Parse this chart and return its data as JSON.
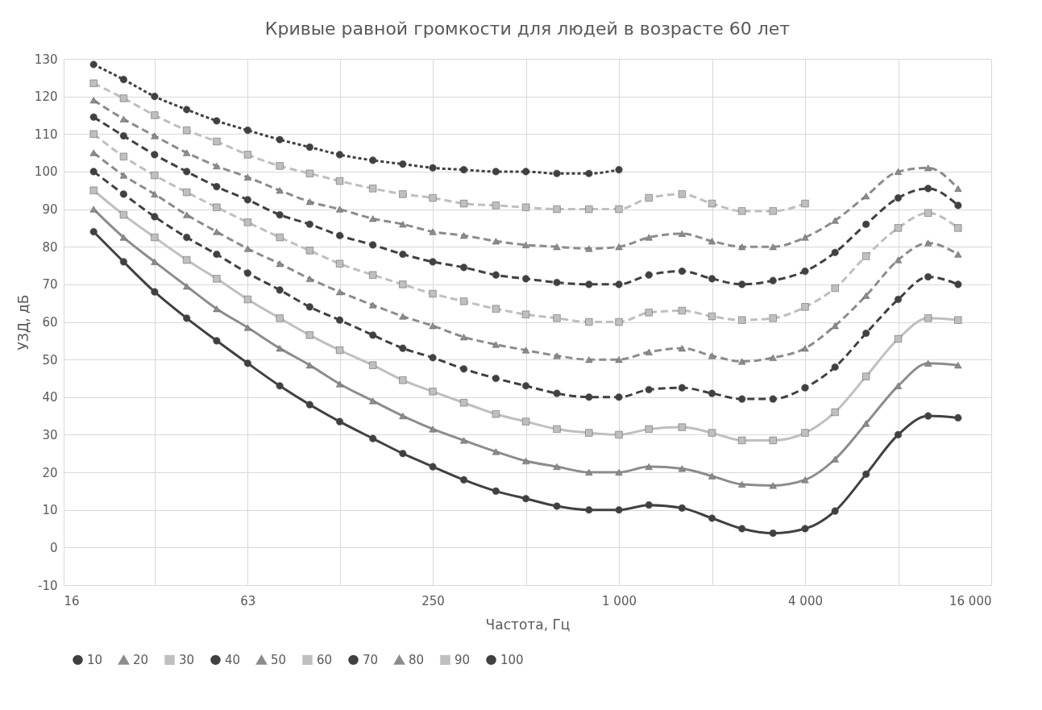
{
  "chart_data": {
    "type": "line",
    "title": "Кривые равной громкости для людей в возрасте 60 лет",
    "xlabel": "Частота, Гц",
    "ylabel": "УЗД, дБ",
    "x": [
      20,
      25,
      31.5,
      40,
      50,
      63,
      80,
      100,
      125,
      160,
      200,
      250,
      315,
      400,
      500,
      630,
      800,
      1000,
      1250,
      1600,
      2000,
      2500,
      3150,
      4000,
      5000,
      6300,
      8000,
      10000,
      12500
    ],
    "log": "x",
    "xlim": [
      16,
      16000
    ],
    "xticks": [
      16,
      {
        "value": 31.5,
        "label": null
      },
      {
        "value": 63,
        "label": "63"
      },
      {
        "value": 125,
        "label": null
      },
      250,
      {
        "value": 500,
        "label": null
      },
      {
        "value": 1000,
        "label": "1 000"
      },
      {
        "value": 2000,
        "label": null
      },
      {
        "value": 4000,
        "label": "4 000"
      },
      {
        "value": 8000,
        "label": null
      },
      {
        "value": 16000,
        "label": "16 000"
      }
    ],
    "ylim": [
      -10,
      130
    ],
    "yticks": [
      -10,
      0,
      10,
      20,
      30,
      40,
      50,
      60,
      70,
      80,
      90,
      100,
      110,
      120,
      130
    ],
    "grid": true,
    "legend": "bottom",
    "series": [
      {
        "name": "10",
        "color": "#404040",
        "marker": "circle",
        "line_style": "solid",
        "values": [
          84,
          76,
          68,
          61,
          55,
          49,
          43,
          38,
          33.5,
          29,
          25,
          21.5,
          18,
          15,
          13,
          11,
          10,
          10,
          11.3,
          10.5,
          7.8,
          5,
          3.8,
          5,
          9.7,
          19.5,
          30,
          35,
          34.5
        ]
      },
      {
        "name": "20",
        "color": "#8c8c8c",
        "marker": "triangle",
        "line_style": "solid",
        "values": [
          90,
          82.5,
          76,
          69.5,
          63.5,
          58.5,
          53,
          48.5,
          43.5,
          39,
          35,
          31.5,
          28.5,
          25.5,
          23,
          21.5,
          20,
          20,
          21.5,
          21,
          19,
          16.8,
          16.5,
          18,
          23.5,
          33,
          43,
          49,
          48.5
        ]
      },
      {
        "name": "30",
        "color": "#bfbfbf",
        "marker": "square",
        "line_style": "solid",
        "values": [
          95,
          88.5,
          82.5,
          76.5,
          71.5,
          66,
          61,
          56.5,
          52.5,
          48.5,
          44.5,
          41.5,
          38.5,
          35.5,
          33.5,
          31.5,
          30.5,
          30,
          31.5,
          32,
          30.5,
          28.5,
          28.5,
          30.5,
          36,
          45.5,
          55.5,
          61,
          60.5
        ]
      },
      {
        "name": "40",
        "color": "#404040",
        "marker": "circle",
        "line_style": "dashed",
        "values": [
          100,
          94,
          88,
          82.5,
          78,
          73,
          68.5,
          64,
          60.5,
          56.5,
          53,
          50.5,
          47.5,
          45,
          43,
          41,
          40,
          40,
          42,
          42.5,
          41,
          39.5,
          39.5,
          42.5,
          48,
          57,
          66,
          72,
          70
        ]
      },
      {
        "name": "50",
        "color": "#8c8c8c",
        "marker": "triangle",
        "line_style": "dashed",
        "values": [
          105,
          99,
          94,
          88.5,
          84,
          79.5,
          75.5,
          71.5,
          68,
          64.5,
          61.5,
          59,
          56,
          54,
          52.5,
          51,
          50,
          50,
          52,
          53,
          51,
          49.5,
          50.5,
          53,
          59,
          67,
          76.5,
          81,
          78
        ]
      },
      {
        "name": "60",
        "color": "#bfbfbf",
        "marker": "square",
        "line_style": "dashed",
        "values": [
          110,
          104,
          99,
          94.5,
          90.5,
          86.5,
          82.5,
          79,
          75.5,
          72.5,
          70,
          67.5,
          65.5,
          63.5,
          62,
          61,
          60,
          60,
          62.5,
          63,
          61.5,
          60.5,
          61,
          64,
          69,
          77.5,
          85,
          89,
          85
        ]
      },
      {
        "name": "70",
        "color": "#404040",
        "marker": "circle",
        "line_style": "dashed",
        "values": [
          114.5,
          109.5,
          104.5,
          100,
          96,
          92.5,
          88.5,
          86,
          83,
          80.5,
          78,
          76,
          74.5,
          72.5,
          71.5,
          70.5,
          70,
          70,
          72.5,
          73.5,
          71.5,
          70,
          71,
          73.5,
          78.5,
          86,
          93,
          95.5,
          91
        ]
      },
      {
        "name": "80",
        "color": "#8c8c8c",
        "marker": "triangle",
        "line_style": "dashed",
        "values": [
          119,
          114,
          109.5,
          105,
          101.5,
          98.5,
          95,
          92,
          90,
          87.5,
          86,
          84,
          83,
          81.5,
          80.5,
          80,
          79.5,
          80,
          82.5,
          83.5,
          81.5,
          80,
          80,
          82.5,
          87,
          93.5,
          100,
          101,
          95.5
        ]
      },
      {
        "name": "90",
        "color": "#bfbfbf",
        "marker": "square",
        "line_style": "dashed",
        "values": [
          123.5,
          119.5,
          115,
          111,
          108,
          104.5,
          101.5,
          99.5,
          97.5,
          95.5,
          94,
          93,
          91.5,
          91,
          90.5,
          90,
          90,
          90,
          93,
          94,
          91.5,
          89.5,
          89.5,
          91.5,
          null,
          null,
          null,
          null,
          null
        ]
      },
      {
        "name": "100",
        "color": "#404040",
        "marker": "circle",
        "line_style": "dotted",
        "values": [
          128.5,
          124.5,
          120,
          116.5,
          113.5,
          111,
          108.5,
          106.5,
          104.5,
          103,
          102,
          101,
          100.5,
          100,
          100,
          99.5,
          99.5,
          100.5,
          null,
          null,
          null,
          null,
          null,
          null,
          null,
          null,
          null,
          null,
          null
        ]
      }
    ]
  }
}
